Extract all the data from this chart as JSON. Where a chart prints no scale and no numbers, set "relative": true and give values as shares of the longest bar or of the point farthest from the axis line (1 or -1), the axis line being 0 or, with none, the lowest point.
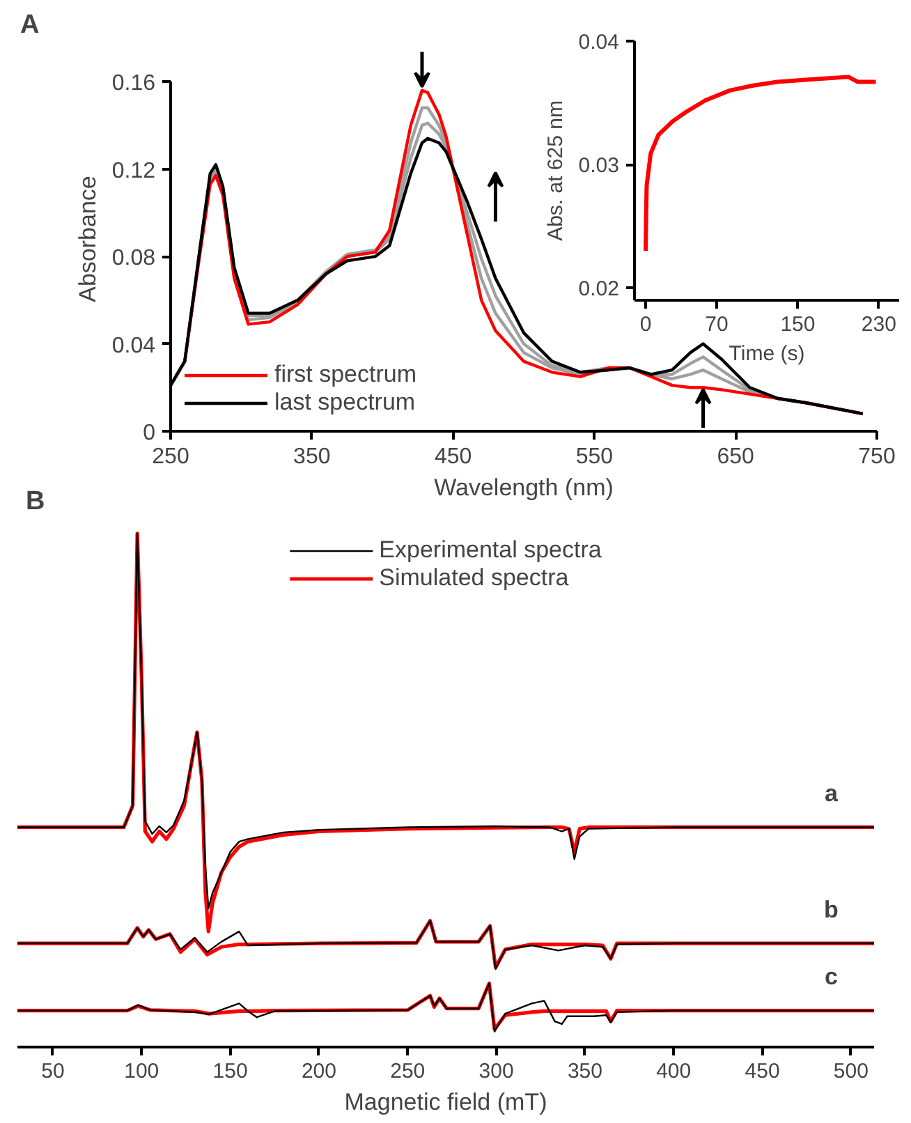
{
  "chart_data": [
    {
      "type": "line",
      "annotations": [
        "A"
      ],
      "xlabel": "Wavelength (nm)",
      "ylabel": "Absorbance",
      "xlim": [
        250,
        750
      ],
      "xticks": [
        250,
        350,
        450,
        550,
        650,
        750
      ],
      "ylim": [
        0,
        0.16
      ],
      "yticks": [
        0,
        0.04,
        0.08,
        0.12,
        0.16
      ],
      "legend": "bottom left",
      "grid": false,
      "x": [
        250,
        260,
        270,
        278,
        282,
        287,
        295,
        305,
        320,
        340,
        360,
        375,
        395,
        405,
        420,
        428,
        432,
        440,
        445,
        460,
        470,
        480,
        500,
        520,
        540,
        560,
        575,
        590,
        605,
        618,
        627,
        640,
        660,
        680,
        700,
        740
      ],
      "series": [
        {
          "color": "#a0a0a0",
          "values": [
            0.021,
            0.032,
            0.079,
            0.115,
            0.119,
            0.11,
            0.072,
            0.051,
            0.052,
            0.059,
            0.073,
            0.081,
            0.083,
            0.09,
            0.132,
            0.148,
            0.148,
            0.14,
            0.132,
            0.095,
            0.07,
            0.054,
            0.036,
            0.029,
            0.026,
            0.029,
            0.029,
            0.026,
            0.024,
            0.026,
            0.028,
            0.024,
            0.018,
            0.015,
            0.013,
            0.008
          ]
        },
        {
          "color": "#a0a0a0",
          "values": [
            0.021,
            0.032,
            0.08,
            0.117,
            0.121,
            0.111,
            0.074,
            0.053,
            0.053,
            0.06,
            0.073,
            0.08,
            0.082,
            0.088,
            0.125,
            0.14,
            0.141,
            0.136,
            0.13,
            0.1,
            0.079,
            0.062,
            0.04,
            0.03,
            0.027,
            0.029,
            0.029,
            0.026,
            0.026,
            0.031,
            0.034,
            0.028,
            0.019,
            0.015,
            0.013,
            0.008
          ]
        },
        {
          "name": "first spectrum",
          "color": "#ff0000",
          "values": [
            0.021,
            0.032,
            0.078,
            0.113,
            0.117,
            0.108,
            0.07,
            0.049,
            0.05,
            0.058,
            0.072,
            0.08,
            0.082,
            0.092,
            0.14,
            0.156,
            0.155,
            0.145,
            0.135,
            0.09,
            0.06,
            0.046,
            0.032,
            0.027,
            0.025,
            0.029,
            0.029,
            0.025,
            0.021,
            0.02,
            0.02,
            0.019,
            0.017,
            0.015,
            0.013,
            0.008
          ]
        },
        {
          "name": "last spectrum",
          "color": "#000000",
          "values": [
            0.021,
            0.032,
            0.08,
            0.118,
            0.122,
            0.112,
            0.075,
            0.054,
            0.054,
            0.06,
            0.072,
            0.078,
            0.08,
            0.085,
            0.118,
            0.132,
            0.134,
            0.132,
            0.128,
            0.105,
            0.088,
            0.07,
            0.045,
            0.032,
            0.027,
            0.028,
            0.029,
            0.026,
            0.028,
            0.036,
            0.04,
            0.033,
            0.02,
            0.015,
            0.013,
            0.008
          ]
        }
      ]
    },
    {
      "type": "line",
      "xlabel": "Time (s)",
      "ylabel": "Abs. at 625 nm",
      "xlim": [
        -11,
        250
      ],
      "xticks": [
        0,
        70,
        150,
        230
      ],
      "ylim": [
        0.019,
        0.04
      ],
      "yticks": [
        0.02,
        0.03,
        0.04
      ],
      "grid": false,
      "x": [
        0,
        0.5,
        1,
        5,
        12.6,
        26.6,
        40.6,
        59,
        83,
        106,
        130,
        163,
        200,
        209,
        227
      ],
      "series": [
        {
          "color": "#ff0000",
          "values": [
            0.023,
            0.026,
            0.0283,
            0.0309,
            0.0324,
            0.0335,
            0.0343,
            0.0352,
            0.036,
            0.0364,
            0.0367,
            0.0369,
            0.0371,
            0.0367,
            0.0367
          ]
        }
      ]
    },
    {
      "type": "line",
      "relative": true,
      "xlabel": "Magnetic field (mT)",
      "xlim": [
        30,
        513
      ],
      "xticks": [
        50,
        100,
        150,
        200,
        250,
        300,
        350,
        400,
        450,
        500
      ],
      "legend": "top",
      "grid": false,
      "annotations": [
        "B",
        "a",
        "b",
        "c"
      ],
      "series": [
        {
          "name": "Experimental spectra",
          "color": "#000000",
          "x": [
            30,
            90,
            95,
            97.6,
            100,
            102,
            106,
            110,
            114,
            118,
            124,
            128,
            131.3,
            134,
            136,
            137.7,
            140,
            145,
            150,
            155,
            160,
            180,
            200,
            250,
            300,
            330,
            337,
            341,
            344,
            347,
            352,
            400,
            513
          ],
          "values": [
            0.428,
            0.428,
            0.47,
            1.0,
            0.72,
            0.44,
            0.415,
            0.43,
            0.418,
            0.432,
            0.48,
            0.55,
            0.613,
            0.52,
            0.35,
            0.27,
            0.3,
            0.34,
            0.38,
            0.4,
            0.405,
            0.418,
            0.423,
            0.428,
            0.43,
            0.428,
            0.42,
            0.425,
            0.366,
            0.41,
            0.425,
            0.428,
            0.428
          ]
        },
        {
          "name": "Simulated spectra",
          "color": "#ff0000",
          "x": [
            30,
            90,
            95,
            97.6,
            100,
            102,
            106,
            110,
            114,
            118,
            124,
            128,
            131.3,
            134,
            136,
            137.7,
            140,
            145,
            150,
            155,
            160,
            180,
            200,
            250,
            300,
            330,
            337,
            341,
            344,
            347,
            352,
            400,
            513
          ],
          "values": [
            0.428,
            0.428,
            0.47,
            1.0,
            0.72,
            0.42,
            0.4,
            0.42,
            0.405,
            0.425,
            0.47,
            0.55,
            0.613,
            0.52,
            0.3,
            0.225,
            0.28,
            0.34,
            0.37,
            0.39,
            0.4,
            0.413,
            0.42,
            0.425,
            0.427,
            0.428,
            0.428,
            0.425,
            0.38,
            0.425,
            0.428,
            0.428,
            0.428
          ]
        },
        {
          "color": "#000000",
          "x": [
            30,
            92,
            97.6,
            101,
            104,
            108,
            116,
            122,
            130,
            137,
            145,
            155,
            160,
            200,
            255,
            262.7,
            266,
            290,
            296.5,
            299.6,
            305,
            320,
            335,
            350,
            360,
            364.5,
            368,
            400,
            513
          ],
          "values": [
            0.202,
            0.202,
            0.232,
            0.215,
            0.228,
            0.21,
            0.22,
            0.19,
            0.213,
            0.185,
            0.205,
            0.225,
            0.198,
            0.202,
            0.203,
            0.246,
            0.205,
            0.205,
            0.236,
            0.152,
            0.19,
            0.198,
            0.188,
            0.198,
            0.195,
            0.172,
            0.2,
            0.202,
            0.202
          ]
        },
        {
          "color": "#ff0000",
          "x": [
            30,
            92,
            97.6,
            101,
            104,
            108,
            116,
            122,
            130,
            137,
            145,
            155,
            160,
            200,
            255,
            262.7,
            266,
            290,
            296.5,
            299.6,
            305,
            320,
            335,
            350,
            360,
            364.5,
            368,
            400,
            513
          ],
          "values": [
            0.202,
            0.202,
            0.232,
            0.215,
            0.228,
            0.21,
            0.22,
            0.185,
            0.21,
            0.18,
            0.195,
            0.2,
            0.2,
            0.202,
            0.203,
            0.246,
            0.205,
            0.205,
            0.236,
            0.155,
            0.19,
            0.2,
            0.2,
            0.2,
            0.198,
            0.172,
            0.202,
            0.202,
            0.202
          ]
        },
        {
          "color": "#000000",
          "x": [
            30,
            92,
            98,
            105,
            130,
            138,
            155,
            160,
            165,
            175,
            250,
            262.7,
            265,
            268,
            272,
            290,
            296,
            299,
            305,
            320,
            327,
            333,
            337,
            340,
            355,
            362,
            364.5,
            368,
            400,
            513
          ],
          "values": [
            0.071,
            0.071,
            0.082,
            0.072,
            0.068,
            0.064,
            0.085,
            0.07,
            0.058,
            0.07,
            0.072,
            0.1,
            0.08,
            0.095,
            0.075,
            0.075,
            0.124,
            0.03,
            0.065,
            0.085,
            0.09,
            0.05,
            0.045,
            0.06,
            0.06,
            0.062,
            0.048,
            0.068,
            0.071,
            0.071
          ]
        },
        {
          "color": "#ff0000",
          "x": [
            30,
            92,
            98,
            105,
            130,
            138,
            155,
            160,
            165,
            175,
            250,
            262.7,
            265,
            268,
            272,
            290,
            296,
            299,
            305,
            320,
            327,
            333,
            337,
            340,
            355,
            362,
            364.5,
            368,
            400,
            513
          ],
          "values": [
            0.071,
            0.071,
            0.08,
            0.072,
            0.07,
            0.065,
            0.07,
            0.07,
            0.07,
            0.071,
            0.072,
            0.1,
            0.078,
            0.095,
            0.075,
            0.075,
            0.124,
            0.035,
            0.062,
            0.068,
            0.07,
            0.07,
            0.07,
            0.07,
            0.07,
            0.07,
            0.05,
            0.071,
            0.071,
            0.071
          ]
        }
      ]
    }
  ]
}
